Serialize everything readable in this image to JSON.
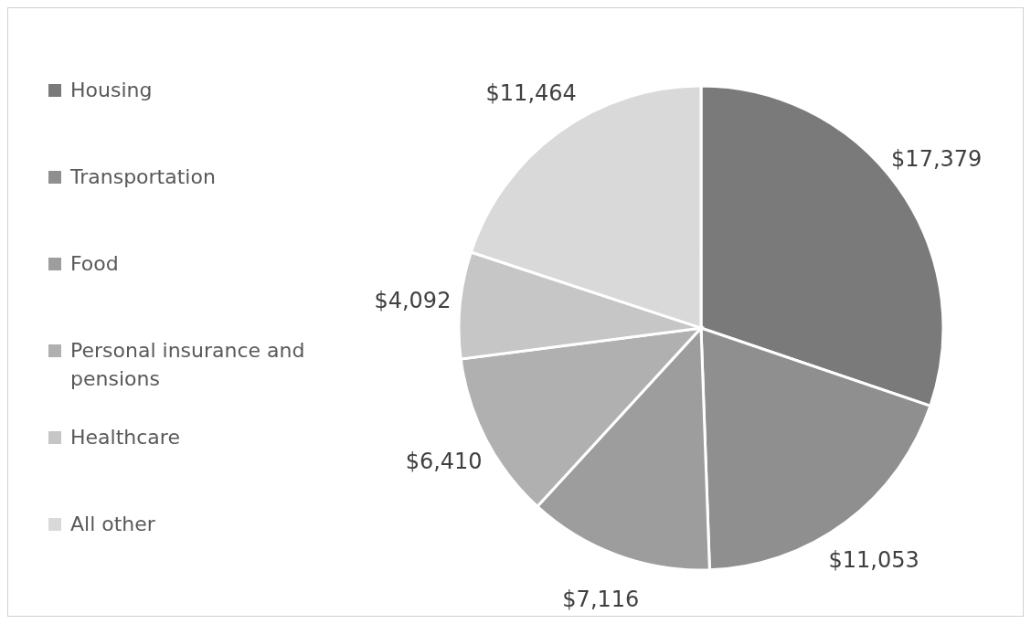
{
  "chart_data": {
    "type": "pie",
    "categories": [
      "Housing",
      "Transportation",
      "Food",
      "Personal insurance and pensions",
      "Healthcare",
      "All other"
    ],
    "values": [
      17379,
      11053,
      7116,
      6410,
      4092,
      11464
    ],
    "colors": [
      "#7a7a7a",
      "#8f8f8f",
      "#9d9d9d",
      "#b0b0b0",
      "#c6c6c6",
      "#d9d9d9"
    ],
    "value_labels": [
      "$17,379",
      "$11,053",
      "$7,116",
      "$6,410",
      "$4,092",
      "$11,464"
    ],
    "legend": "left"
  }
}
